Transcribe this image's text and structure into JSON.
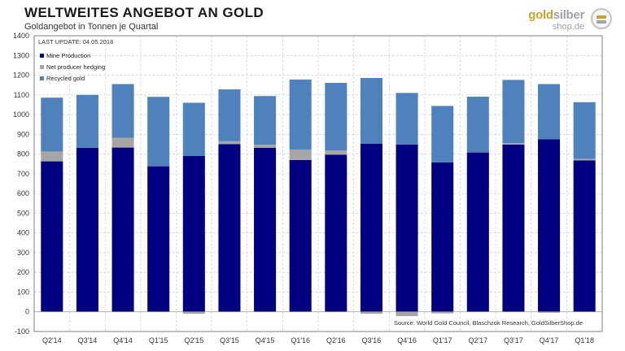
{
  "header": {
    "title": "WELTWEITES ANGEBOT AN GOLD",
    "subtitle": "Goldangebot in Tonnen je Quartal"
  },
  "logo": {
    "brand_gold": "gold",
    "brand_silver": "silber",
    "domain": "shop.de"
  },
  "chart_data": {
    "type": "bar",
    "stacked": true,
    "categories": [
      "Q2'14",
      "Q3'14",
      "Q4'14",
      "Q1'15",
      "Q2'15",
      "Q3'15",
      "Q4'15",
      "Q1'16",
      "Q2'16",
      "Q3'16",
      "Q4'16",
      "Q1'17",
      "Q2'17",
      "Q3'17",
      "Q4'17",
      "Q1'18"
    ],
    "series": [
      {
        "name": "Mine Production",
        "color": "#000080",
        "values": [
          763,
          832,
          833,
          738,
          790,
          850,
          832,
          770,
          797,
          853,
          848,
          758,
          808,
          848,
          875,
          768
        ]
      },
      {
        "name": "Net producer hedging",
        "color": "#a6a6a6",
        "values": [
          50,
          0,
          50,
          0,
          -10,
          15,
          15,
          52,
          22,
          -10,
          -22,
          -8,
          0,
          8,
          -5,
          8
        ]
      },
      {
        "name": "Recycled gold",
        "color": "#4f81bd",
        "values": [
          273,
          268,
          272,
          352,
          270,
          263,
          247,
          356,
          342,
          333,
          262,
          286,
          283,
          320,
          280,
          287
        ]
      }
    ],
    "ylim": [
      -100,
      1400
    ],
    "yticks": [
      -100,
      0,
      100,
      200,
      300,
      400,
      500,
      600,
      700,
      800,
      900,
      1000,
      1100,
      1200,
      1300,
      1400
    ],
    "grid": true,
    "legend_position": "top-left",
    "last_update": "LAST UPDATE: 04.05.2018",
    "source": "Source: World Gold Council, Blaschzok Research, GoldSilberShop.de"
  }
}
